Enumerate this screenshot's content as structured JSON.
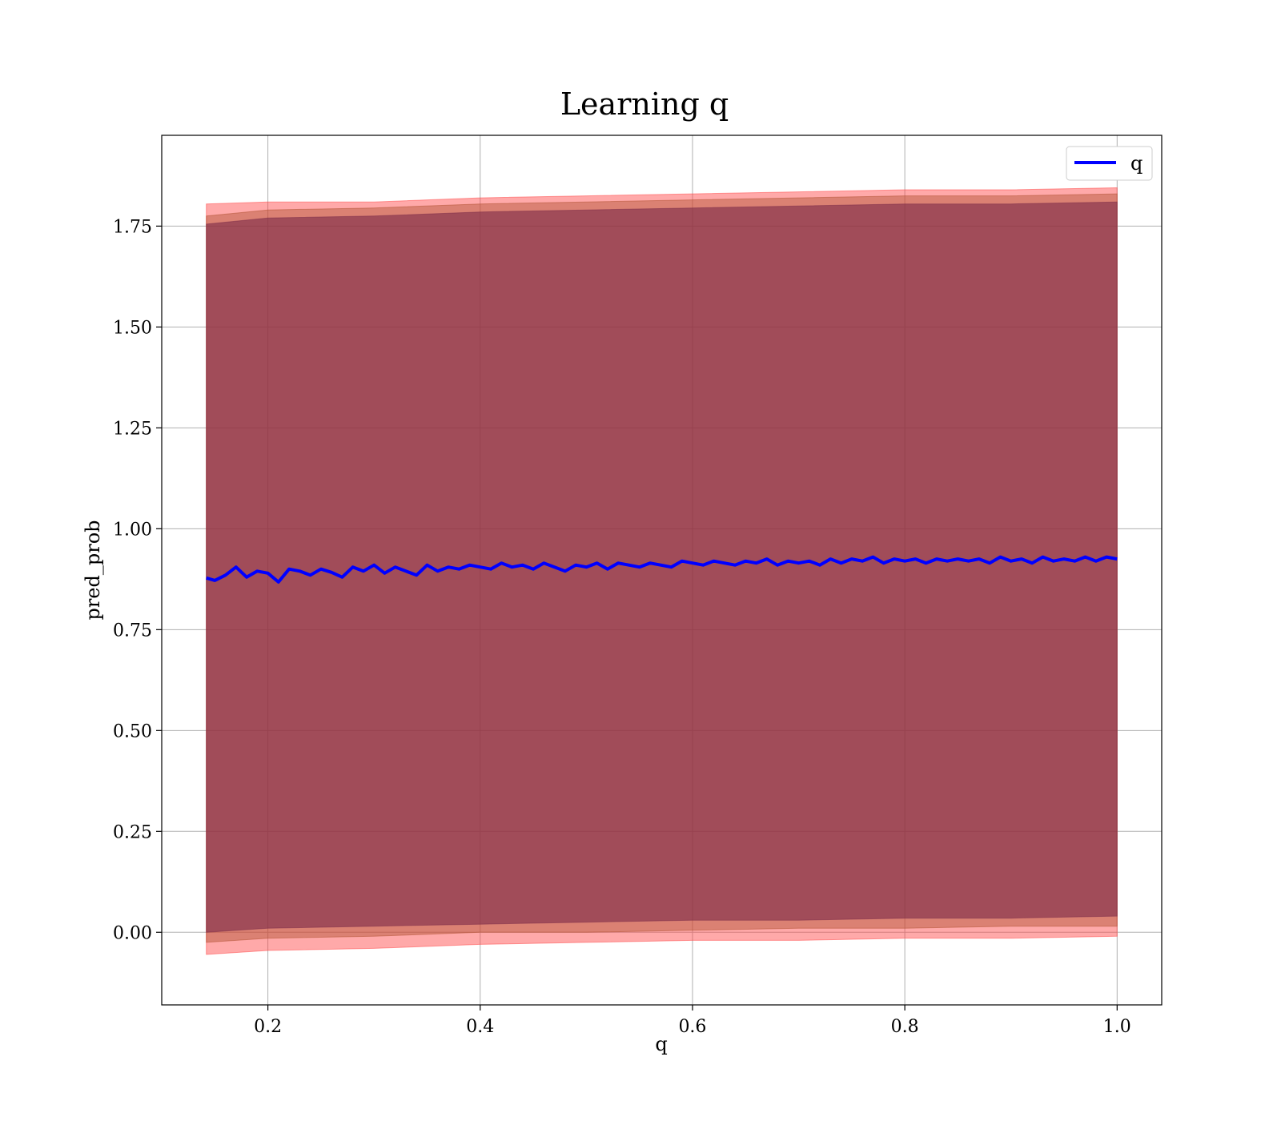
{
  "chart_data": {
    "type": "area",
    "title": "Learning q",
    "xlabel": "q",
    "ylabel": "pred_prob",
    "xlim": [
      0.1,
      1.042
    ],
    "ylim": [
      -0.18,
      1.975
    ],
    "xticks": [
      0.2,
      0.4,
      0.6,
      0.8,
      1.0
    ],
    "xtick_labels": [
      "0.2",
      "0.4",
      "0.6",
      "0.8",
      "1.0"
    ],
    "yticks": [
      0.0,
      0.25,
      0.5,
      0.75,
      1.0,
      1.25,
      1.5,
      1.75
    ],
    "ytick_labels": [
      "0.00",
      "0.25",
      "0.50",
      "0.75",
      "1.00",
      "1.25",
      "1.50",
      "1.75"
    ],
    "grid": true,
    "legend": {
      "position": "top-right",
      "entries": [
        "q"
      ]
    },
    "series": [
      {
        "name": "q",
        "kind": "line",
        "color": "#0000ff",
        "x": [
          0.142,
          0.15,
          0.16,
          0.17,
          0.18,
          0.19,
          0.2,
          0.21,
          0.22,
          0.23,
          0.24,
          0.25,
          0.26,
          0.27,
          0.28,
          0.29,
          0.3,
          0.31,
          0.32,
          0.33,
          0.34,
          0.35,
          0.36,
          0.37,
          0.38,
          0.39,
          0.4,
          0.41,
          0.42,
          0.43,
          0.44,
          0.45,
          0.46,
          0.47,
          0.48,
          0.49,
          0.5,
          0.51,
          0.52,
          0.53,
          0.54,
          0.55,
          0.56,
          0.57,
          0.58,
          0.59,
          0.6,
          0.61,
          0.62,
          0.63,
          0.64,
          0.65,
          0.66,
          0.67,
          0.68,
          0.69,
          0.7,
          0.71,
          0.72,
          0.73,
          0.74,
          0.75,
          0.76,
          0.77,
          0.78,
          0.79,
          0.8,
          0.81,
          0.82,
          0.83,
          0.84,
          0.85,
          0.86,
          0.87,
          0.88,
          0.89,
          0.9,
          0.91,
          0.92,
          0.93,
          0.94,
          0.95,
          0.96,
          0.97,
          0.98,
          0.99,
          1.0
        ],
        "y": [
          0.878,
          0.872,
          0.885,
          0.905,
          0.88,
          0.895,
          0.89,
          0.868,
          0.9,
          0.895,
          0.885,
          0.9,
          0.892,
          0.88,
          0.905,
          0.895,
          0.91,
          0.89,
          0.905,
          0.895,
          0.885,
          0.91,
          0.895,
          0.905,
          0.9,
          0.91,
          0.905,
          0.9,
          0.915,
          0.905,
          0.91,
          0.9,
          0.915,
          0.905,
          0.895,
          0.91,
          0.905,
          0.915,
          0.9,
          0.915,
          0.91,
          0.905,
          0.915,
          0.91,
          0.905,
          0.92,
          0.915,
          0.91,
          0.92,
          0.915,
          0.91,
          0.92,
          0.915,
          0.925,
          0.91,
          0.92,
          0.915,
          0.92,
          0.91,
          0.925,
          0.915,
          0.925,
          0.92,
          0.93,
          0.915,
          0.925,
          0.92,
          0.925,
          0.915,
          0.925,
          0.92,
          0.925,
          0.92,
          0.925,
          0.915,
          0.93,
          0.92,
          0.925,
          0.915,
          0.93,
          0.92,
          0.925,
          0.92,
          0.93,
          0.92,
          0.93,
          0.925
        ]
      },
      {
        "kind": "band",
        "color": "#ff4040",
        "opacity": 0.45,
        "x": [
          0.142,
          0.2,
          0.3,
          0.4,
          0.5,
          0.6,
          0.7,
          0.8,
          0.9,
          1.0
        ],
        "upper": [
          1.805,
          1.81,
          1.81,
          1.82,
          1.825,
          1.83,
          1.835,
          1.84,
          1.84,
          1.845
        ],
        "lower": [
          -0.055,
          -0.045,
          -0.04,
          -0.03,
          -0.025,
          -0.02,
          -0.02,
          -0.015,
          -0.015,
          -0.01
        ]
      },
      {
        "kind": "band",
        "color": "#b05030",
        "opacity": 0.45,
        "x": [
          0.142,
          0.2,
          0.3,
          0.4,
          0.5,
          0.6,
          0.7,
          0.8,
          0.9,
          1.0
        ],
        "upper": [
          1.775,
          1.79,
          1.795,
          1.805,
          1.81,
          1.815,
          1.82,
          1.825,
          1.825,
          1.83
        ],
        "lower": [
          -0.025,
          -0.015,
          -0.01,
          0.0,
          0.0,
          0.005,
          0.01,
          0.01,
          0.015,
          0.015
        ]
      },
      {
        "kind": "band",
        "color": "#7a2a48",
        "opacity": 0.6,
        "x": [
          0.142,
          0.2,
          0.3,
          0.4,
          0.5,
          0.6,
          0.7,
          0.8,
          0.9,
          1.0
        ],
        "upper": [
          1.755,
          1.77,
          1.775,
          1.785,
          1.79,
          1.795,
          1.8,
          1.805,
          1.805,
          1.81
        ],
        "lower": [
          0.0,
          0.01,
          0.015,
          0.02,
          0.025,
          0.03,
          0.03,
          0.035,
          0.035,
          0.04
        ]
      }
    ]
  }
}
